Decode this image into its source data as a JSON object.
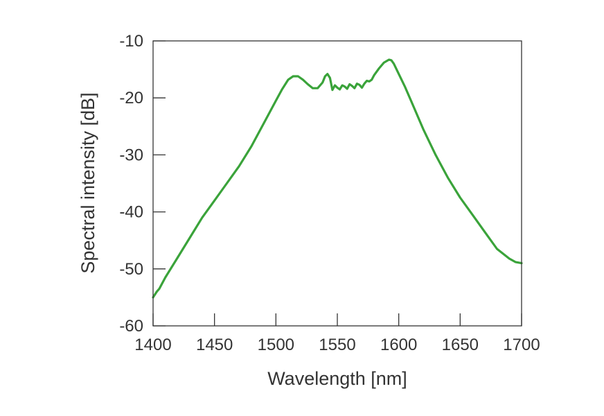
{
  "chart_data": {
    "type": "line",
    "xlabel": "Wavelength [nm]",
    "ylabel": "Spectral intensity [dB]",
    "xlim": [
      1400,
      1700
    ],
    "ylim": [
      -60,
      -10
    ],
    "xticks": [
      "1400",
      "1450",
      "1500",
      "1550",
      "1600",
      "1650",
      "1700"
    ],
    "yticks": [
      "-10",
      "-20",
      "-30",
      "-40",
      "-50",
      "-60"
    ],
    "grid": false,
    "legend": "none",
    "line_color": "#3aa33a",
    "series": [
      {
        "x": [
          1400,
          1403,
          1405,
          1410,
          1420,
          1430,
          1440,
          1450,
          1460,
          1470,
          1480,
          1490,
          1500,
          1505,
          1510,
          1514,
          1518,
          1522,
          1526,
          1530,
          1534,
          1538,
          1540,
          1542,
          1544,
          1546,
          1548,
          1550,
          1552,
          1554,
          1556,
          1558,
          1560,
          1562,
          1564,
          1566,
          1568,
          1570,
          1572,
          1574,
          1576,
          1578,
          1580,
          1584,
          1588,
          1592,
          1594,
          1596,
          1600,
          1605,
          1610,
          1620,
          1630,
          1640,
          1650,
          1660,
          1670,
          1680,
          1690,
          1695,
          1700
        ],
        "y": [
          -55.0,
          -54.0,
          -53.5,
          -51.5,
          -48.0,
          -44.5,
          -41.0,
          -38.0,
          -35.0,
          -32.0,
          -28.5,
          -24.5,
          -20.5,
          -18.5,
          -16.8,
          -16.2,
          -16.2,
          -16.8,
          -17.6,
          -18.3,
          -18.3,
          -17.3,
          -16.2,
          -15.8,
          -16.5,
          -18.6,
          -17.8,
          -18.2,
          -18.5,
          -17.8,
          -18.0,
          -18.4,
          -17.6,
          -17.9,
          -18.3,
          -17.5,
          -17.7,
          -18.2,
          -17.5,
          -17.0,
          -17.1,
          -16.8,
          -16.0,
          -14.8,
          -13.8,
          -13.3,
          -13.4,
          -14.0,
          -15.8,
          -18.0,
          -20.5,
          -25.5,
          -30.0,
          -34.0,
          -37.5,
          -40.5,
          -43.5,
          -46.5,
          -48.2,
          -48.8,
          -49.0
        ]
      }
    ]
  }
}
